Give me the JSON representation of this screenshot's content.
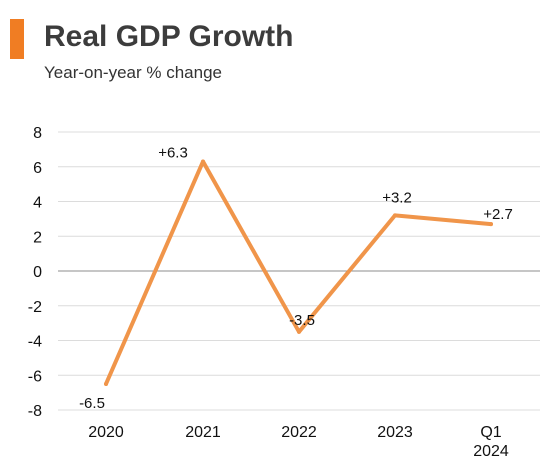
{
  "header": {
    "title": "Real GDP Growth",
    "subtitle": "Year-on-year % change",
    "accent_color": "#f07d23"
  },
  "chart_data": {
    "type": "line",
    "title": "Real GDP Growth",
    "subtitle": "Year-on-year % change",
    "xlabel": "",
    "ylabel": "",
    "categories": [
      [
        "2020"
      ],
      [
        "2021"
      ],
      [
        "2022"
      ],
      [
        "2023"
      ],
      [
        "Q1",
        "2024"
      ]
    ],
    "series": [
      {
        "values": [
          -6.5,
          6.3,
          -3.5,
          3.2,
          2.7
        ],
        "color": "#f0954a"
      }
    ],
    "data_labels": [
      "-6.5",
      "+6.3",
      "-3.5",
      "+3.2",
      "+2.7"
    ],
    "ylim": [
      -8,
      8
    ],
    "yticks": [
      8,
      6,
      4,
      2,
      0,
      -2,
      -4,
      -6,
      -8
    ],
    "grid": true,
    "legend": "none"
  }
}
